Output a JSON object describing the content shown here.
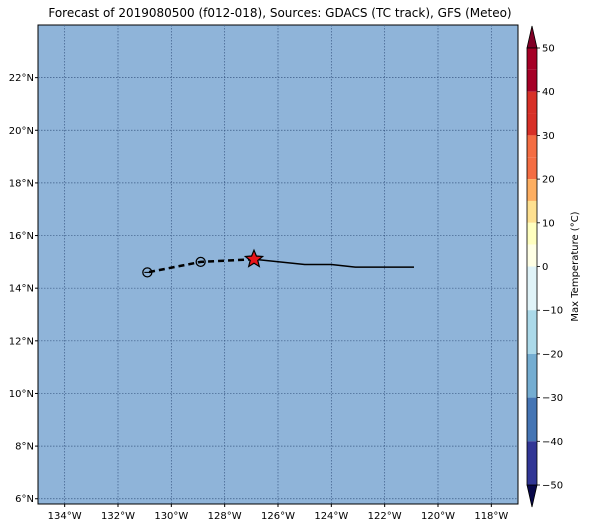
{
  "title": "Forecast of 2019080500 (f012-018), Sources: GDACS (TC track), GFS (Meteo)",
  "map": {
    "lon_range": [
      -135,
      -117
    ],
    "lat_range": [
      5.8,
      24
    ],
    "ocean_color": "#8fb4d9",
    "grid_color": "#3b5a85",
    "lon_ticks": [
      {
        "v": -134,
        "label": "134°W"
      },
      {
        "v": -132,
        "label": "132°W"
      },
      {
        "v": -130,
        "label": "130°W"
      },
      {
        "v": -128,
        "label": "128°W"
      },
      {
        "v": -126,
        "label": "126°W"
      },
      {
        "v": -124,
        "label": "124°W"
      },
      {
        "v": -122,
        "label": "122°W"
      },
      {
        "v": -120,
        "label": "120°W"
      },
      {
        "v": -118,
        "label": "118°W"
      }
    ],
    "lat_ticks": [
      {
        "v": 6,
        "label": "6°N"
      },
      {
        "v": 8,
        "label": "8°N"
      },
      {
        "v": 10,
        "label": "10°N"
      },
      {
        "v": 12,
        "label": "12°N"
      },
      {
        "v": 14,
        "label": "14°N"
      },
      {
        "v": 16,
        "label": "16°N"
      },
      {
        "v": 18,
        "label": "18°N"
      },
      {
        "v": 20,
        "label": "20°N"
      },
      {
        "v": 22,
        "label": "22°N"
      }
    ]
  },
  "track": {
    "past": [
      [
        -120.9,
        14.8
      ],
      [
        -122,
        14.8
      ],
      [
        -123.1,
        14.8
      ],
      [
        -124,
        14.9
      ],
      [
        -125,
        14.9
      ],
      [
        -126.9,
        15.1
      ]
    ],
    "current": [
      -126.9,
      15.1
    ],
    "forecast": [
      [
        -126.9,
        15.1
      ],
      [
        -128.9,
        15.0
      ],
      [
        -130.9,
        14.6
      ]
    ],
    "forecast_points": [
      [
        -128.9,
        15.0
      ],
      [
        -130.9,
        14.6
      ]
    ],
    "current_marker_color": "#e8141a"
  },
  "colorbar": {
    "label": "Max Temperature (°C)",
    "ticks": [
      {
        "v": 50,
        "label": "50"
      },
      {
        "v": 40,
        "label": "40"
      },
      {
        "v": 30,
        "label": "30"
      },
      {
        "v": 20,
        "label": "20"
      },
      {
        "v": 10,
        "label": "10"
      },
      {
        "v": 0,
        "label": "0"
      },
      {
        "v": -10,
        "label": "−10"
      },
      {
        "v": -20,
        "label": "−20"
      },
      {
        "v": -30,
        "label": "−30"
      },
      {
        "v": -40,
        "label": "−40"
      },
      {
        "v": -50,
        "label": "−50"
      }
    ],
    "bands": [
      {
        "from": 45,
        "to": 50,
        "color": "#a50026"
      },
      {
        "from": 40,
        "to": 45,
        "color": "#a50026"
      },
      {
        "from": 35,
        "to": 40,
        "color": "#d73027"
      },
      {
        "from": 30,
        "to": 35,
        "color": "#d73027"
      },
      {
        "from": 25,
        "to": 30,
        "color": "#f46d43"
      },
      {
        "from": 20,
        "to": 25,
        "color": "#f46d43"
      },
      {
        "from": 15,
        "to": 20,
        "color": "#fdae61"
      },
      {
        "from": 10,
        "to": 15,
        "color": "#fee090"
      },
      {
        "from": 5,
        "to": 10,
        "color": "#ffffbf"
      },
      {
        "from": 0,
        "to": 5,
        "color": "#ffffe5"
      },
      {
        "from": -10,
        "to": 0,
        "color": "#e0f3f8"
      },
      {
        "from": -20,
        "to": -10,
        "color": "#abd9e9"
      },
      {
        "from": -30,
        "to": -20,
        "color": "#74add1"
      },
      {
        "from": -40,
        "to": -30,
        "color": "#4575b4"
      },
      {
        "from": -50,
        "to": -40,
        "color": "#313695"
      }
    ],
    "over_color": "#800026",
    "under_color": "#08084a"
  }
}
